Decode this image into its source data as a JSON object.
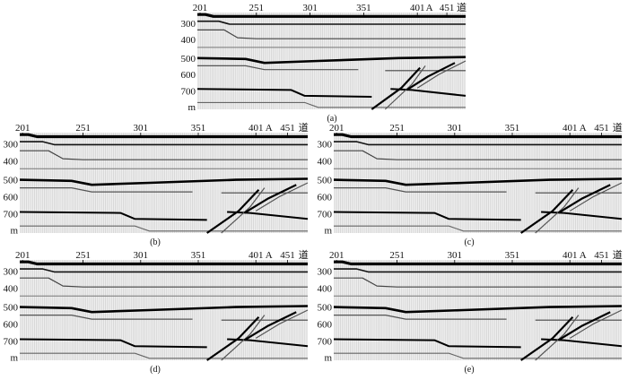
{
  "figure": {
    "trace_axis": {
      "ticks": [
        "201",
        "251",
        "301",
        "351",
        "401",
        "451"
      ],
      "marker": "A",
      "unit": "道"
    },
    "depth_axis": {
      "ticks": [
        "300",
        "400",
        "500",
        "600",
        "700"
      ],
      "unit": "m"
    },
    "panels": [
      {
        "id": "a",
        "caption": "(a)"
      },
      {
        "id": "b",
        "caption": "(b)"
      },
      {
        "id": "c",
        "caption": "(c)"
      },
      {
        "id": "d",
        "caption": "(d)"
      },
      {
        "id": "e",
        "caption": "(e)"
      }
    ]
  }
}
